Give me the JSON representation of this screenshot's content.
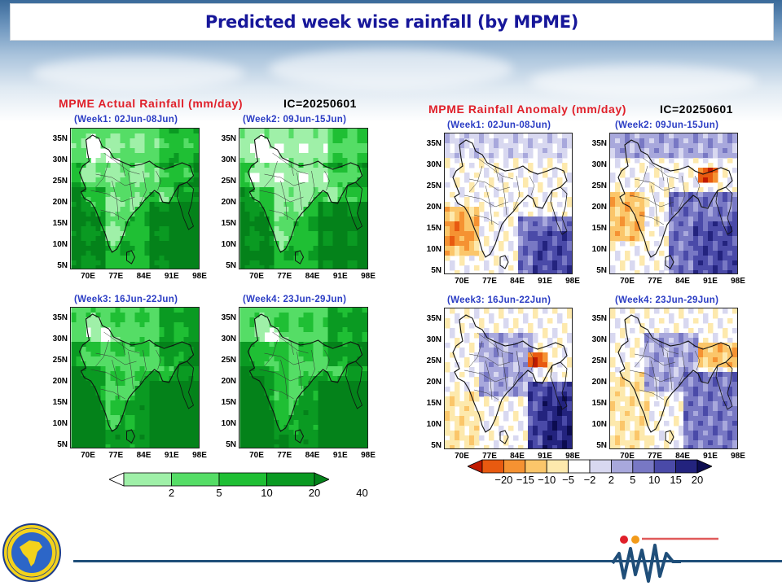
{
  "title": "Predicted week wise rainfall (by MPME)",
  "actual_panel": {
    "title": "MPME Actual Rainfall (mm/day)",
    "ic": "IC=20250601",
    "weeks": [
      "(Week1: 02Jun-08Jun)",
      "(Week2: 09Jun-15Jun)",
      "(Week3: 16Jun-22Jun)",
      "(Week4: 23Jun-29Jun)"
    ],
    "colorbar": {
      "labels": [
        "2",
        "5",
        "10",
        "20",
        "40"
      ],
      "colors": [
        "#ffffff",
        "#9ff0a8",
        "#55dd66",
        "#1fbf34",
        "#0a9a22",
        "#04821a"
      ]
    }
  },
  "anomaly_panel": {
    "title": "MPME Rainfall Anomaly (mm/day)",
    "ic": "IC=20250601",
    "weeks": [
      "(Week1: 02Jun-08Jun)",
      "(Week2: 09Jun-15Jun)",
      "(Week3: 16Jun-22Jun)",
      "(Week4: 23Jun-29Jun)"
    ],
    "colorbar": {
      "labels": [
        "−20",
        "−15",
        "−10",
        "−5",
        "−2",
        "2",
        "5",
        "10",
        "15",
        "20"
      ],
      "colors": [
        "#c01a00",
        "#e85a10",
        "#f59232",
        "#fbc66a",
        "#fde9ad",
        "#ffffff",
        "#d8d8f0",
        "#a8a8dc",
        "#7878c4",
        "#4a4aa8",
        "#23237e",
        "#0c0c50"
      ]
    }
  },
  "axes": {
    "lat_ticks": [
      "35N",
      "30N",
      "25N",
      "20N",
      "15N",
      "10N",
      "5N"
    ],
    "lon_ticks": [
      "70E",
      "77E",
      "84E",
      "91E",
      "98E"
    ]
  }
}
